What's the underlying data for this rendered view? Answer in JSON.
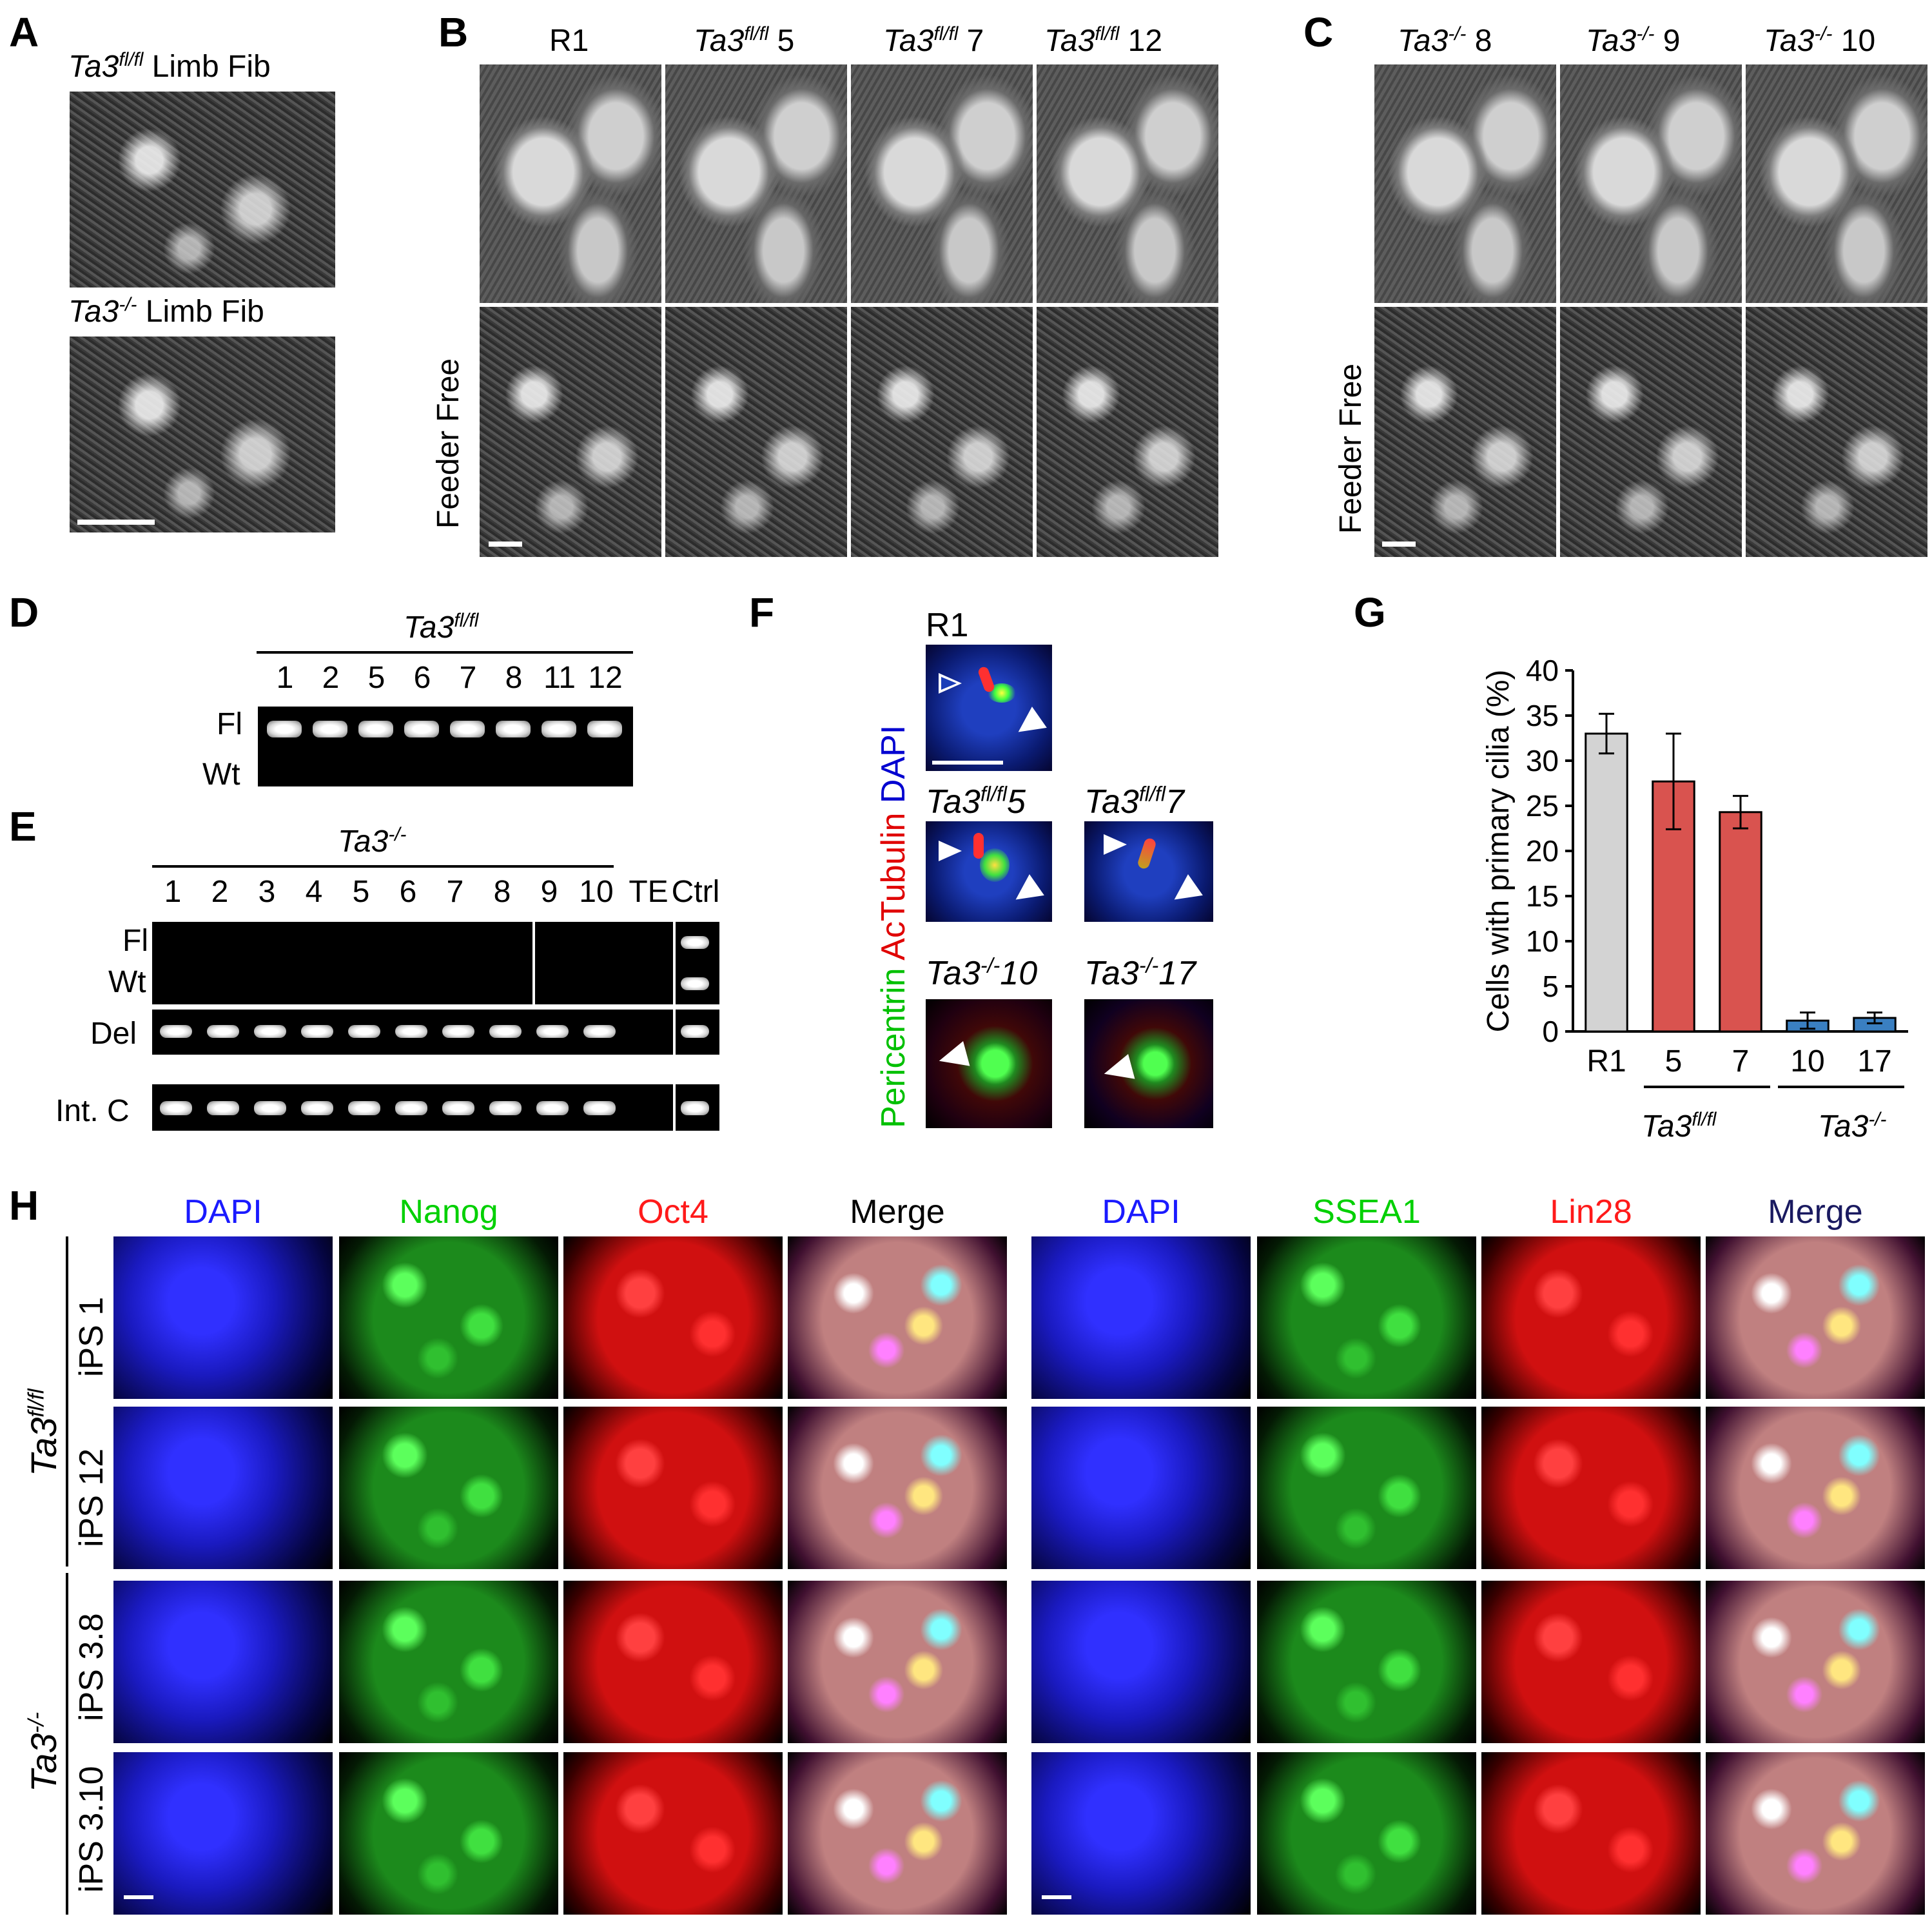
{
  "panels": {
    "A": {
      "letter": "A",
      "top_title": {
        "gene": "Ta3",
        "sup": "fl/fl",
        "rest": " Limb Fib"
      },
      "bottom_title": {
        "gene": "Ta3",
        "sup": "-/-",
        "rest": " Limb Fib"
      }
    },
    "B": {
      "letter": "B",
      "columns": [
        {
          "name": "R1",
          "sup": "",
          "num": ""
        },
        {
          "name": "Ta3",
          "sup": "fl/fl",
          "num": " 5"
        },
        {
          "name": "Ta3",
          "sup": "fl/fl",
          "num": " 7"
        },
        {
          "name": "Ta3",
          "sup": "fl/fl",
          "num": " 12"
        }
      ],
      "row_label": "Feeder Free"
    },
    "C": {
      "letter": "C",
      "columns": [
        {
          "name": "Ta3",
          "sup": "-/-",
          "num": "  8"
        },
        {
          "name": "Ta3",
          "sup": "-/-",
          "num": "  9"
        },
        {
          "name": "Ta3",
          "sup": "-/-",
          "num": "  10"
        }
      ],
      "row_label": "Feeder Free"
    },
    "D": {
      "letter": "D",
      "header": {
        "gene": "Ta3",
        "sup": "fl/fl"
      },
      "lanes": [
        "1",
        "2",
        "5",
        "6",
        "7",
        "8",
        "11",
        "12"
      ],
      "rows": [
        "Fl",
        "Wt"
      ]
    },
    "E": {
      "letter": "E",
      "header": {
        "gene": "Ta3",
        "sup": "-/-"
      },
      "lanes": [
        "1",
        "2",
        "3",
        "4",
        "5",
        "6",
        "7",
        "8",
        "9",
        "10",
        "TE",
        "Ctrl"
      ],
      "rows": [
        "Fl",
        "Wt",
        "Del",
        "Int. C"
      ]
    },
    "F": {
      "letter": "F",
      "stain": {
        "green": "Pericentrin",
        "red": "AcTubulin",
        "blue": "DAPI"
      },
      "images": [
        {
          "gene": "R1",
          "sup": "",
          "num": ""
        },
        {
          "gene": "Ta3",
          "sup": "fl/fl",
          "num": "5"
        },
        {
          "gene": "Ta3",
          "sup": "fl/fl",
          "num": "7"
        },
        {
          "gene": "Ta3",
          "sup": "-/-",
          "num": "10"
        },
        {
          "gene": "Ta3",
          "sup": "-/-",
          "num": "17"
        }
      ]
    },
    "G": {
      "letter": "G",
      "group_labels": [
        {
          "gene": "Ta3",
          "sup": "fl/fl"
        },
        {
          "gene": "Ta3",
          "sup": "-/-"
        }
      ]
    },
    "H": {
      "letter": "H",
      "left_headers": [
        "DAPI",
        "Nanog",
        "Oct4",
        "Merge"
      ],
      "right_headers": [
        "DAPI",
        "SSEA1",
        "Lin28",
        "Merge"
      ],
      "row_labels": [
        "iPS 1",
        "iPS 12",
        "iPS 3.8",
        "iPS 3.10"
      ],
      "genotypes": [
        {
          "gene": "Ta3",
          "sup": "fl/fl"
        },
        {
          "gene": "Ta3",
          "sup": "-/-"
        }
      ]
    }
  },
  "chart_data": {
    "type": "bar",
    "ylabel": "Cells with primary cilia (%)",
    "ylim": [
      0,
      40
    ],
    "yticks": [
      0,
      5,
      10,
      15,
      20,
      25,
      30,
      35,
      40
    ],
    "categories": [
      "R1",
      "5",
      "7",
      "10",
      "17"
    ],
    "values": [
      33.0,
      27.7,
      24.3,
      1.2,
      1.5
    ],
    "errors": [
      2.2,
      5.3,
      1.8,
      0.9,
      0.6
    ],
    "colors": [
      "#d3d3d3",
      "#d9534f",
      "#d9534f",
      "#3a7fc1",
      "#3a7fc1"
    ],
    "grid": false
  }
}
